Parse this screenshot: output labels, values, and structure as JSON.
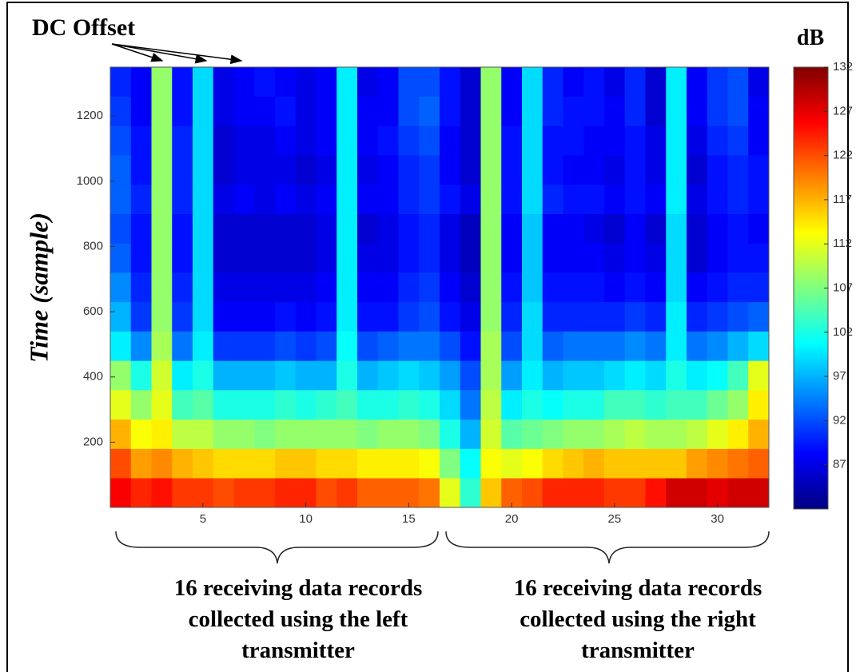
{
  "chart_data": {
    "type": "heatmap",
    "ylabel": "Time (sample)",
    "colorbar_label": "dB",
    "colormap": "jet",
    "annotations": {
      "dc_offset": "DC Offset",
      "left_group": [
        "16 receiving data records",
        "collected using the left",
        "transmitter"
      ],
      "right_group": [
        "16 receiving data records",
        "collected using the right",
        "transmitter"
      ]
    },
    "x": [
      1,
      2,
      3,
      4,
      5,
      6,
      7,
      8,
      9,
      10,
      11,
      12,
      13,
      14,
      15,
      16,
      17,
      18,
      19,
      20,
      21,
      22,
      23,
      24,
      25,
      26,
      27,
      28,
      29,
      30,
      31,
      32
    ],
    "xlim": [
      0.5,
      32.5
    ],
    "xticks": [
      5,
      10,
      15,
      20,
      25,
      30
    ],
    "y_bins": [
      0,
      90,
      180,
      270,
      360,
      450,
      540,
      630,
      720,
      810,
      900,
      990,
      1080,
      1170,
      1260,
      1350
    ],
    "ylim": [
      0,
      1350
    ],
    "yticks": [
      200,
      400,
      600,
      800,
      1000,
      1200
    ],
    "zlim": [
      82,
      132
    ],
    "zticks": [
      87,
      92,
      97,
      102,
      107,
      112,
      117,
      122,
      127,
      132
    ],
    "values": [
      [
        126,
        124,
        125,
        123,
        123,
        122,
        123,
        123,
        124,
        124,
        122,
        123,
        121,
        121,
        121,
        120,
        112,
        103,
        116,
        121,
        122,
        124,
        124,
        124,
        123,
        123,
        125,
        128,
        128,
        127,
        128,
        128
      ],
      [
        122,
        118,
        119,
        117,
        116,
        115,
        115,
        115,
        116,
        116,
        115,
        115,
        114,
        114,
        114,
        113,
        107,
        101,
        113,
        112,
        113,
        115,
        116,
        117,
        116,
        116,
        116,
        116,
        118,
        119,
        120,
        121
      ],
      [
        117,
        113,
        114,
        110,
        110,
        108,
        108,
        107,
        108,
        108,
        108,
        108,
        107,
        108,
        108,
        107,
        102,
        97,
        111,
        105,
        106,
        107,
        108,
        108,
        109,
        110,
        109,
        109,
        110,
        112,
        114,
        117
      ],
      [
        112,
        108,
        112,
        104,
        105,
        102,
        102,
        102,
        103,
        102,
        103,
        104,
        102,
        102,
        103,
        102,
        99,
        94,
        110,
        100,
        102,
        101,
        102,
        102,
        104,
        104,
        103,
        104,
        104,
        106,
        108,
        114
      ],
      [
        108,
        102,
        111,
        100,
        102,
        97,
        97,
        97,
        98,
        97,
        97,
        102,
        97,
        98,
        99,
        98,
        96,
        92,
        109,
        96,
        100,
        97,
        98,
        98,
        99,
        100,
        99,
        102,
        100,
        101,
        104,
        112
      ],
      [
        100,
        95,
        109,
        94,
        100,
        91,
        91,
        91,
        92,
        91,
        92,
        101,
        92,
        93,
        94,
        94,
        92,
        89,
        109,
        92,
        99,
        93,
        94,
        94,
        94,
        95,
        94,
        100,
        94,
        95,
        97,
        99
      ],
      [
        97,
        91,
        108,
        91,
        99,
        88,
        88,
        88,
        89,
        88,
        89,
        100,
        89,
        89,
        91,
        92,
        89,
        87,
        108,
        90,
        99,
        90,
        90,
        90,
        90,
        91,
        90,
        100,
        90,
        91,
        92,
        93
      ],
      [
        95,
        90,
        108,
        90,
        99,
        87,
        87,
        87,
        87,
        87,
        88,
        100,
        88,
        88,
        90,
        91,
        88,
        86,
        108,
        89,
        98,
        89,
        89,
        89,
        88,
        89,
        88,
        99,
        88,
        89,
        90,
        90
      ],
      [
        93,
        89,
        108,
        89,
        99,
        86,
        86,
        86,
        86,
        86,
        87,
        100,
        87,
        87,
        89,
        90,
        87,
        85,
        108,
        88,
        98,
        88,
        88,
        88,
        87,
        88,
        87,
        99,
        86,
        88,
        89,
        89
      ],
      [
        92,
        89,
        108,
        89,
        99,
        86,
        86,
        86,
        86,
        86,
        87,
        100,
        86,
        87,
        89,
        90,
        87,
        85,
        108,
        88,
        98,
        88,
        88,
        87,
        86,
        88,
        86,
        99,
        86,
        88,
        89,
        88
      ],
      [
        93,
        90,
        108,
        90,
        99,
        87,
        88,
        87,
        88,
        87,
        88,
        100,
        88,
        88,
        90,
        91,
        89,
        87,
        108,
        89,
        99,
        90,
        89,
        89,
        88,
        89,
        88,
        100,
        87,
        89,
        90,
        89
      ],
      [
        93,
        89,
        108,
        90,
        99,
        86,
        87,
        87,
        87,
        86,
        87,
        100,
        87,
        88,
        90,
        91,
        88,
        86,
        108,
        89,
        99,
        89,
        88,
        88,
        87,
        89,
        87,
        100,
        86,
        89,
        90,
        89
      ],
      [
        92,
        89,
        108,
        90,
        99,
        86,
        87,
        87,
        88,
        87,
        88,
        100,
        88,
        89,
        91,
        92,
        88,
        86,
        108,
        89,
        99,
        89,
        89,
        88,
        88,
        89,
        87,
        100,
        87,
        90,
        91,
        88
      ],
      [
        91,
        88,
        108,
        89,
        99,
        87,
        88,
        88,
        89,
        87,
        88,
        100,
        88,
        88,
        92,
        93,
        89,
        86,
        108,
        88,
        99,
        90,
        89,
        89,
        88,
        90,
        86,
        100,
        88,
        91,
        92,
        88
      ],
      [
        90,
        88,
        108,
        89,
        99,
        87,
        88,
        89,
        88,
        87,
        88,
        100,
        87,
        88,
        92,
        92,
        89,
        86,
        108,
        88,
        99,
        90,
        88,
        89,
        87,
        90,
        86,
        100,
        88,
        91,
        92,
        87
      ]
    ]
  }
}
